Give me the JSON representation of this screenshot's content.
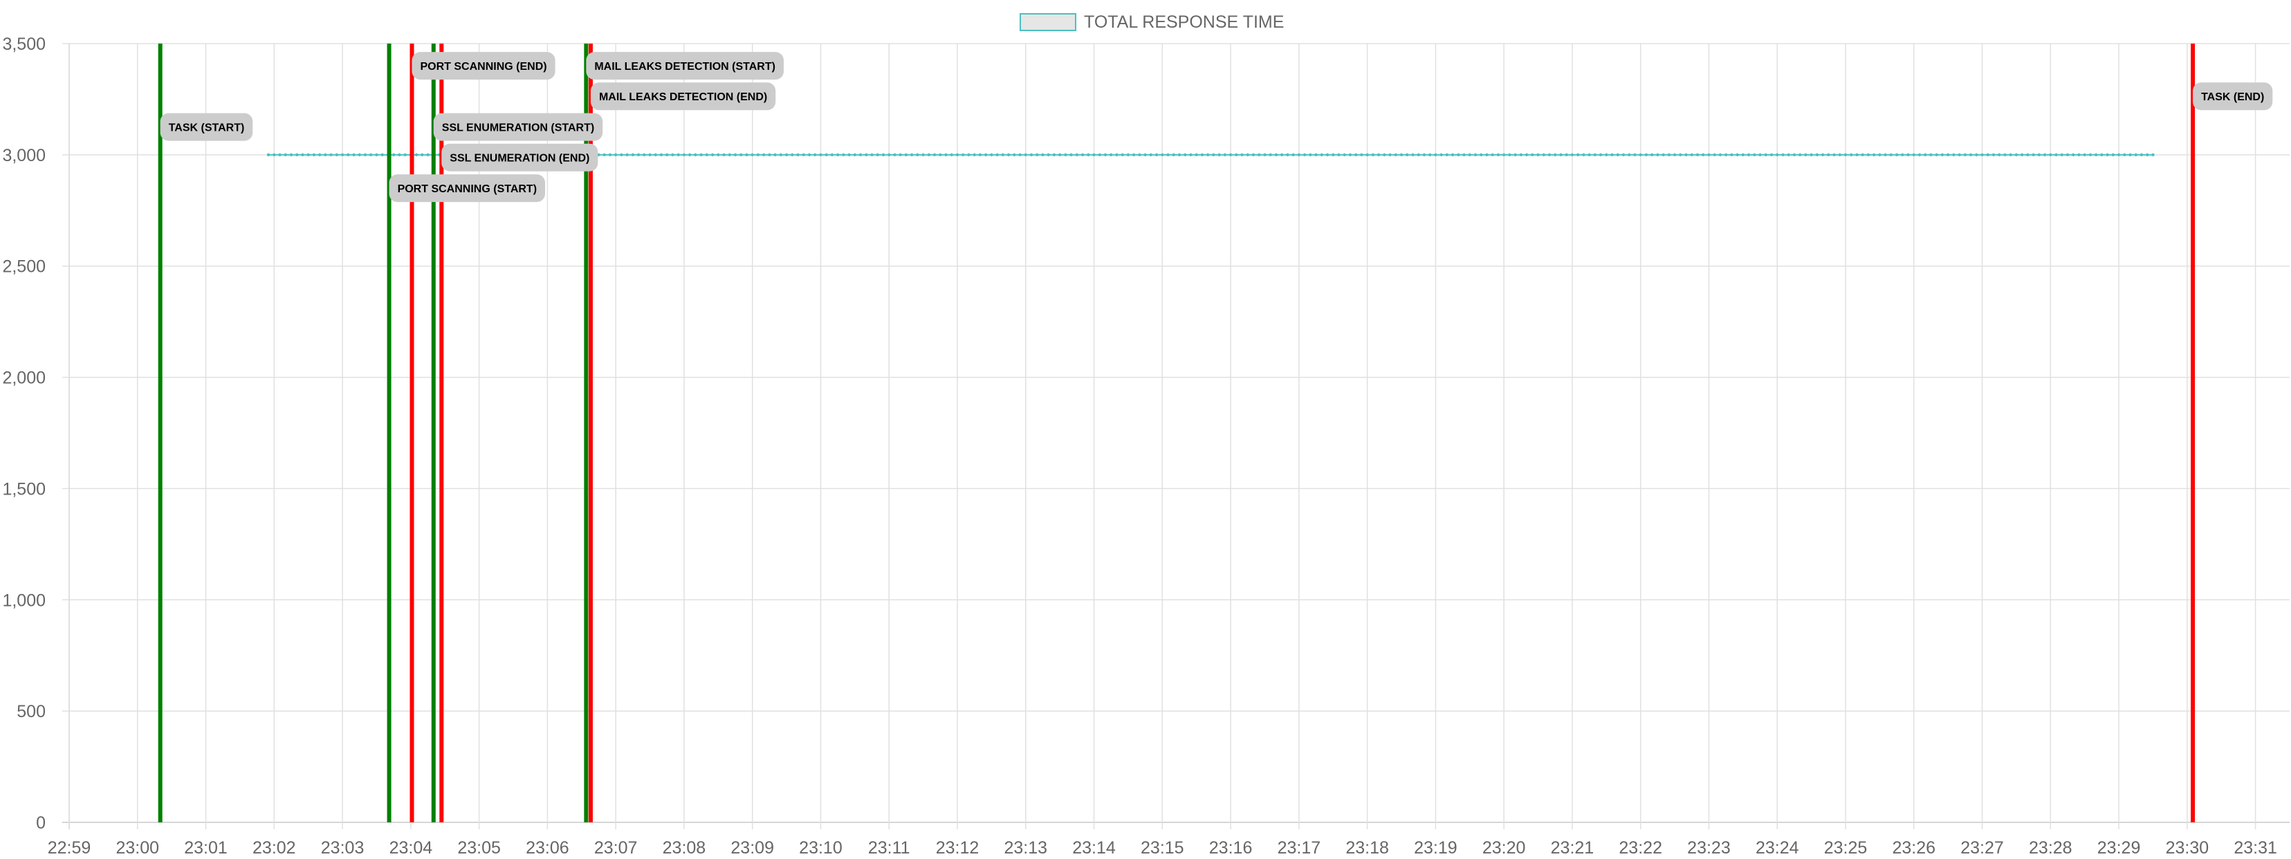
{
  "chart_data": {
    "type": "line",
    "title": "",
    "xlabel": "",
    "ylabel": "",
    "legend": {
      "position": "top"
    },
    "grid": true,
    "x_axis": {
      "type": "time",
      "range": [
        "22:59",
        "23:31:30"
      ],
      "tick_labels": [
        "22:59",
        "23:00",
        "23:01",
        "23:02",
        "23:03",
        "23:04",
        "23:05",
        "23:06",
        "23:07",
        "23:08",
        "23:09",
        "23:10",
        "23:11",
        "23:12",
        "23:13",
        "23:14",
        "23:15",
        "23:16",
        "23:17",
        "23:18",
        "23:19",
        "23:20",
        "23:21",
        "23:22",
        "23:23",
        "23:24",
        "23:25",
        "23:26",
        "23:27",
        "23:28",
        "23:29",
        "23:30",
        "23:31"
      ]
    },
    "y_axis": {
      "range": [
        0,
        3500
      ],
      "tick_labels": [
        "0",
        "500",
        "1,000",
        "1,500",
        "2,000",
        "2,500",
        "3,000",
        "3,500"
      ]
    },
    "series": [
      {
        "name": "TOTAL RESPONSE TIME",
        "color": "#4bc0c0",
        "x_start": "23:01:55",
        "x_end": "23:29:30",
        "constant_value": 3000
      }
    ],
    "annotations": [
      {
        "label": "TASK (START)",
        "x": "23:00:20",
        "color": "#008000",
        "label_y": 3125
      },
      {
        "label": "PORT SCANNING (START)",
        "x": "23:03:41",
        "color": "#008000",
        "label_y": 2850
      },
      {
        "label": "PORT SCANNING (END)",
        "x": "23:04:01",
        "color": "#ff0000",
        "label_y": 3400
      },
      {
        "label": "SSL ENUMERATION (START)",
        "x": "23:04:20",
        "color": "#008000",
        "label_y": 3125
      },
      {
        "label": "SSL ENUMERATION (END)",
        "x": "23:04:27",
        "color": "#ff0000",
        "label_y": 2988
      },
      {
        "label": "MAIL LEAKS DETECTION (START)",
        "x": "23:06:34",
        "color": "#008000",
        "label_y": 3400
      },
      {
        "label": "MAIL LEAKS DETECTION (END)",
        "x": "23:06:38",
        "color": "#ff0000",
        "label_y": 3263
      },
      {
        "label": "TASK (END)",
        "x": "23:30:05",
        "color": "#ff0000",
        "label_y": 3263
      }
    ]
  }
}
